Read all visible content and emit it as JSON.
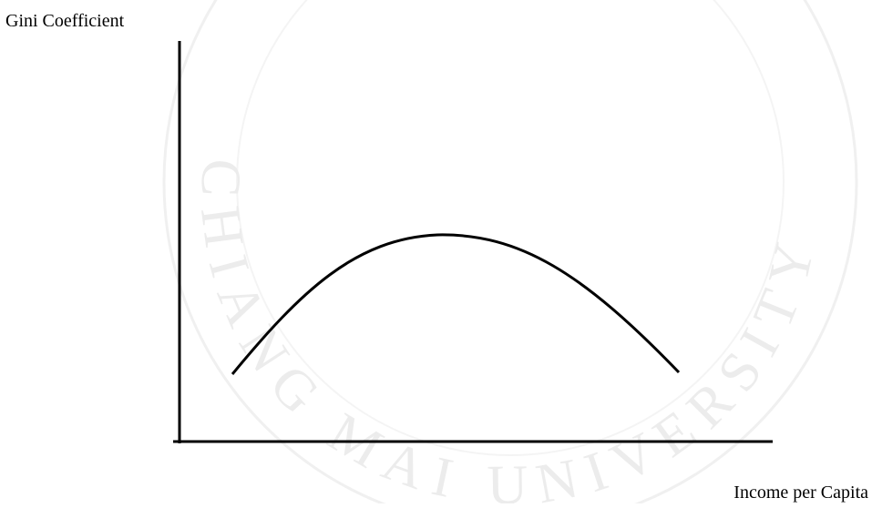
{
  "diagram": {
    "y_axis_label": "Gini Coefficient",
    "x_axis_label": "Income per Capita",
    "watermark": "CHIANG MAI UNIVERSITY"
  }
}
